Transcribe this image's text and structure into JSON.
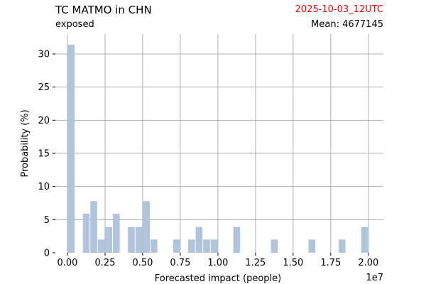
{
  "header": {
    "title": "TC MATMO in CHN",
    "subtitle": "exposed",
    "date": "2025-10-03_12UTC",
    "mean": "Mean: 4677145"
  },
  "colors": {
    "bar": "#b0c4de",
    "date": "#ff0000",
    "grid": "#b0b0b0"
  },
  "chart_data": {
    "type": "bar",
    "title": "TC MATMO in CHN",
    "xlabel": "Forecasted impact (people)",
    "ylabel": "Probability (%)",
    "x_scale_label": "1e7",
    "xlim": [
      -0.08,
      2.1
    ],
    "ylim": [
      0,
      33
    ],
    "xticks": [
      0.0,
      0.25,
      0.5,
      0.75,
      1.0,
      1.25,
      1.5,
      1.75,
      2.0
    ],
    "xtick_labels": [
      "0.00",
      "0.25",
      "0.50",
      "0.75",
      "1.00",
      "1.25",
      "1.50",
      "1.75",
      "2.00"
    ],
    "yticks": [
      0,
      5,
      10,
      15,
      20,
      25,
      30
    ],
    "ytick_labels": [
      "0",
      "5",
      "10",
      "15",
      "20",
      "25",
      "30"
    ],
    "bin_width": 0.05,
    "grid": true,
    "bars": [
      {
        "x": 0.025,
        "value": 31.4
      },
      {
        "x": 0.125,
        "value": 5.9
      },
      {
        "x": 0.175,
        "value": 7.8
      },
      {
        "x": 0.225,
        "value": 2.0
      },
      {
        "x": 0.275,
        "value": 3.9
      },
      {
        "x": 0.325,
        "value": 5.9
      },
      {
        "x": 0.425,
        "value": 3.9
      },
      {
        "x": 0.475,
        "value": 3.9
      },
      {
        "x": 0.525,
        "value": 7.8
      },
      {
        "x": 0.575,
        "value": 2.0
      },
      {
        "x": 0.725,
        "value": 2.0
      },
      {
        "x": 0.825,
        "value": 2.0
      },
      {
        "x": 0.875,
        "value": 3.9
      },
      {
        "x": 0.925,
        "value": 2.0
      },
      {
        "x": 0.975,
        "value": 2.0
      },
      {
        "x": 1.125,
        "value": 3.9
      },
      {
        "x": 1.375,
        "value": 2.0
      },
      {
        "x": 1.625,
        "value": 2.0
      },
      {
        "x": 1.825,
        "value": 2.0
      },
      {
        "x": 1.975,
        "value": 3.9
      }
    ]
  }
}
